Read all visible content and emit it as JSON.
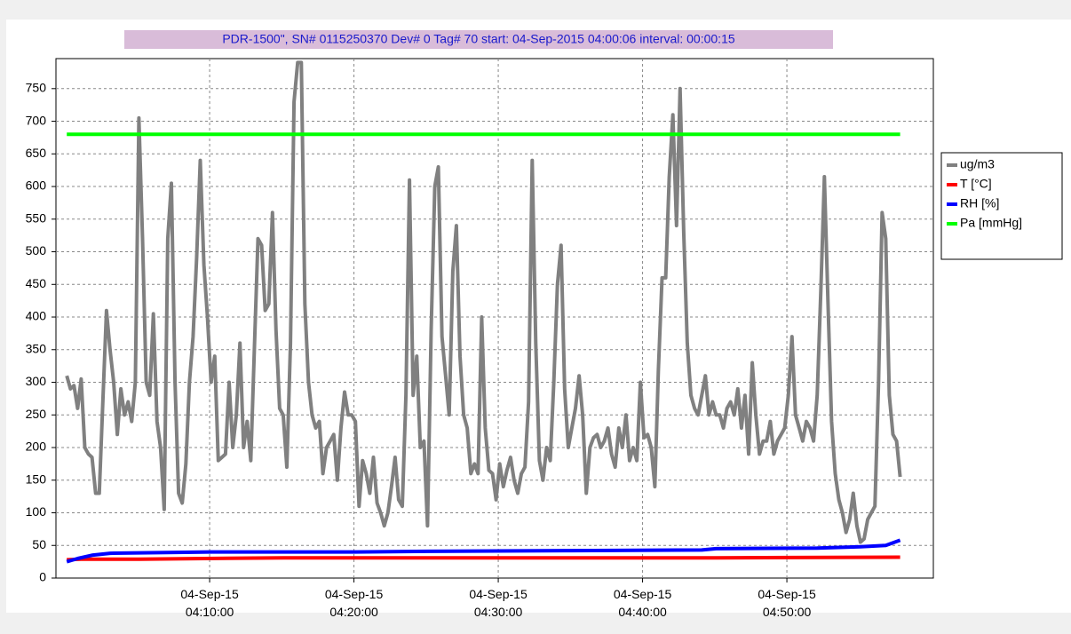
{
  "chart_data": {
    "type": "line",
    "title": "PDR-1500\",  SN# 0115250370  Dev# 0  Tag# 70  start: 04-Sep-2015 04:00:06  interval: 00:00:15",
    "xlim": [
      "03:59:21",
      "05:00:09"
    ],
    "xticks": [
      {
        "value": "04:10:00",
        "label": "04-Sep-15\n04:10:00"
      },
      {
        "value": "04:20:00",
        "label": "04-Sep-15\n04:20:00"
      },
      {
        "value": "04:30:00",
        "label": "04-Sep-15\n04:30:00"
      },
      {
        "value": "04:40:00",
        "label": "04-Sep-15\n04:40:00"
      },
      {
        "value": "04:50:00",
        "label": "04-Sep-15\n04:50:00"
      }
    ],
    "ylim": [
      0,
      796
    ],
    "yticks": [
      0,
      50,
      100,
      150,
      200,
      250,
      300,
      350,
      400,
      450,
      500,
      550,
      600,
      650,
      700,
      750
    ],
    "grid": true,
    "legend": "right",
    "series": [
      {
        "name": "ug/m3",
        "color": "#808080",
        "x": [
          "04:00:06",
          "04:00:21",
          "04:00:36",
          "04:00:51",
          "04:01:06",
          "04:01:21",
          "04:01:36",
          "04:01:51",
          "04:02:06",
          "04:02:21",
          "04:02:36",
          "04:02:51",
          "04:03:06",
          "04:03:21",
          "04:03:36",
          "04:03:51",
          "04:04:06",
          "04:04:21",
          "04:04:36",
          "04:04:51",
          "04:05:06",
          "04:05:21",
          "04:05:36",
          "04:05:51",
          "04:06:06",
          "04:06:21",
          "04:06:36",
          "04:06:51",
          "04:07:06",
          "04:07:21",
          "04:07:36",
          "04:07:51",
          "04:08:06",
          "04:08:21",
          "04:08:36",
          "04:08:51",
          "04:09:06",
          "04:09:21",
          "04:09:36",
          "04:09:51",
          "04:10:06",
          "04:10:21",
          "04:10:36",
          "04:10:51",
          "04:11:06",
          "04:11:21",
          "04:11:36",
          "04:11:51",
          "04:12:06",
          "04:12:21",
          "04:12:36",
          "04:12:51",
          "04:13:06",
          "04:13:21",
          "04:13:36",
          "04:13:51",
          "04:14:06",
          "04:14:21",
          "04:14:36",
          "04:14:51",
          "04:15:06",
          "04:15:21",
          "04:15:36",
          "04:15:51",
          "04:16:06",
          "04:16:21",
          "04:16:36",
          "04:16:51",
          "04:17:06",
          "04:17:21",
          "04:17:36",
          "04:17:51",
          "04:18:06",
          "04:18:21",
          "04:18:36",
          "04:18:51",
          "04:19:06",
          "04:19:21",
          "04:19:36",
          "04:19:51",
          "04:20:06",
          "04:20:21",
          "04:20:36",
          "04:20:51",
          "04:21:06",
          "04:21:21",
          "04:21:36",
          "04:21:51",
          "04:22:06",
          "04:22:21",
          "04:22:36",
          "04:22:51",
          "04:23:06",
          "04:23:21",
          "04:23:36",
          "04:23:51",
          "04:24:06",
          "04:24:21",
          "04:24:36",
          "04:24:51",
          "04:25:06",
          "04:25:21",
          "04:25:36",
          "04:25:51",
          "04:26:06",
          "04:26:21",
          "04:26:36",
          "04:26:51",
          "04:27:06",
          "04:27:21",
          "04:27:36",
          "04:27:51",
          "04:28:06",
          "04:28:21",
          "04:28:36",
          "04:28:51",
          "04:29:06",
          "04:29:21",
          "04:29:36",
          "04:29:51",
          "04:30:06",
          "04:30:21",
          "04:30:36",
          "04:30:51",
          "04:31:06",
          "04:31:21",
          "04:31:36",
          "04:31:51",
          "04:32:06",
          "04:32:21",
          "04:32:36",
          "04:32:51",
          "04:33:06",
          "04:33:21",
          "04:33:36",
          "04:33:51",
          "04:34:06",
          "04:34:21",
          "04:34:36",
          "04:34:51",
          "04:35:06",
          "04:35:21",
          "04:35:36",
          "04:35:51",
          "04:36:06",
          "04:36:21",
          "04:36:36",
          "04:36:51",
          "04:37:06",
          "04:37:21",
          "04:37:36",
          "04:37:51",
          "04:38:06",
          "04:38:21",
          "04:38:36",
          "04:38:51",
          "04:39:06",
          "04:39:21",
          "04:39:36",
          "04:39:51",
          "04:40:06",
          "04:40:21",
          "04:40:36",
          "04:40:51",
          "04:41:06",
          "04:41:21",
          "04:41:36",
          "04:41:51",
          "04:42:06",
          "04:42:21",
          "04:42:36",
          "04:42:51",
          "04:43:06",
          "04:43:21",
          "04:43:36",
          "04:43:51",
          "04:44:06",
          "04:44:21",
          "04:44:36",
          "04:44:51",
          "04:45:06",
          "04:45:21",
          "04:45:36",
          "04:45:51",
          "04:46:06",
          "04:46:21",
          "04:46:36",
          "04:46:51",
          "04:47:06",
          "04:47:21",
          "04:47:36",
          "04:47:51",
          "04:48:06",
          "04:48:21",
          "04:48:36",
          "04:48:51",
          "04:49:06",
          "04:49:21",
          "04:49:36",
          "04:49:51",
          "04:50:06",
          "04:50:21",
          "04:50:36",
          "04:50:51",
          "04:51:06",
          "04:51:21",
          "04:51:36",
          "04:51:51",
          "04:52:06",
          "04:52:21",
          "04:52:36",
          "04:52:51",
          "04:53:06",
          "04:53:21",
          "04:53:36",
          "04:53:51",
          "04:54:06",
          "04:54:21",
          "04:54:36",
          "04:54:51",
          "04:55:06",
          "04:55:21",
          "04:55:36",
          "04:55:51",
          "04:56:06",
          "04:56:21",
          "04:56:36",
          "04:56:51",
          "04:57:06",
          "04:57:21",
          "04:57:36",
          "04:57:51"
        ],
        "values": [
          310,
          290,
          295,
          260,
          305,
          200,
          190,
          185,
          130,
          130,
          270,
          410,
          350,
          300,
          220,
          290,
          250,
          270,
          240,
          300,
          705,
          520,
          300,
          280,
          405,
          240,
          200,
          105,
          520,
          605,
          300,
          130,
          115,
          175,
          300,
          370,
          490,
          640,
          480,
          400,
          300,
          340,
          180,
          185,
          190,
          300,
          200,
          250,
          360,
          200,
          240,
          180,
          350,
          520,
          510,
          410,
          420,
          560,
          380,
          260,
          250,
          170,
          360,
          730,
          790,
          790,
          420,
          300,
          250,
          230,
          240,
          160,
          200,
          210,
          220,
          150,
          230,
          285,
          250,
          250,
          240,
          110,
          180,
          160,
          130,
          185,
          115,
          100,
          80,
          100,
          140,
          185,
          120,
          110,
          280,
          610,
          280,
          340,
          200,
          210,
          80,
          380,
          600,
          630,
          370,
          310,
          250,
          470,
          540,
          340,
          250,
          230,
          160,
          175,
          160,
          400,
          230,
          165,
          160,
          120,
          175,
          140,
          165,
          185,
          150,
          130,
          160,
          170,
          270,
          640,
          360,
          180,
          150,
          200,
          180,
          300,
          450,
          510,
          290,
          200,
          230,
          260,
          310,
          250,
          130,
          200,
          215,
          220,
          200,
          210,
          230,
          190,
          170,
          230,
          200,
          250,
          180,
          200,
          180,
          300,
          215,
          220,
          200,
          140,
          320,
          460,
          460,
          615,
          710,
          540,
          750,
          530,
          360,
          280,
          260,
          250,
          280,
          310,
          250,
          270,
          250,
          250,
          230,
          260,
          270,
          250,
          290,
          230,
          280,
          190,
          330,
          250,
          190,
          210,
          210,
          240,
          190,
          210,
          220,
          230,
          280,
          370,
          250,
          230,
          210,
          240,
          230,
          210,
          280,
          440,
          615,
          420,
          240,
          160,
          120,
          100,
          70,
          90,
          130,
          80,
          55,
          60,
          90,
          100,
          110,
          300,
          560,
          520,
          280,
          220,
          210,
          155
        ]
      },
      {
        "name": "T [°C]",
        "color": "#ff0000",
        "x": [
          "04:00:06",
          "04:01:06",
          "04:05:06",
          "04:15:06",
          "04:30:06",
          "04:45:06",
          "04:57:51"
        ],
        "values": [
          28,
          29,
          29,
          31,
          31,
          31,
          32
        ]
      },
      {
        "name": "RH [%]",
        "color": "#0000ff",
        "x": [
          "04:00:06",
          "04:00:51",
          "04:01:51",
          "04:03:06",
          "04:10:06",
          "04:20:06",
          "04:25:06",
          "04:35:06",
          "04:44:06",
          "04:45:06",
          "04:52:06",
          "04:55:06",
          "04:56:51",
          "04:57:51"
        ],
        "values": [
          25,
          30,
          35,
          38,
          40,
          40,
          41,
          42,
          43,
          45,
          46,
          48,
          50,
          58
        ]
      },
      {
        "name": "Pa [mmHg]",
        "color": "#00ff00",
        "x": [
          "04:00:06",
          "04:57:51"
        ],
        "values": [
          680,
          680
        ]
      }
    ]
  }
}
